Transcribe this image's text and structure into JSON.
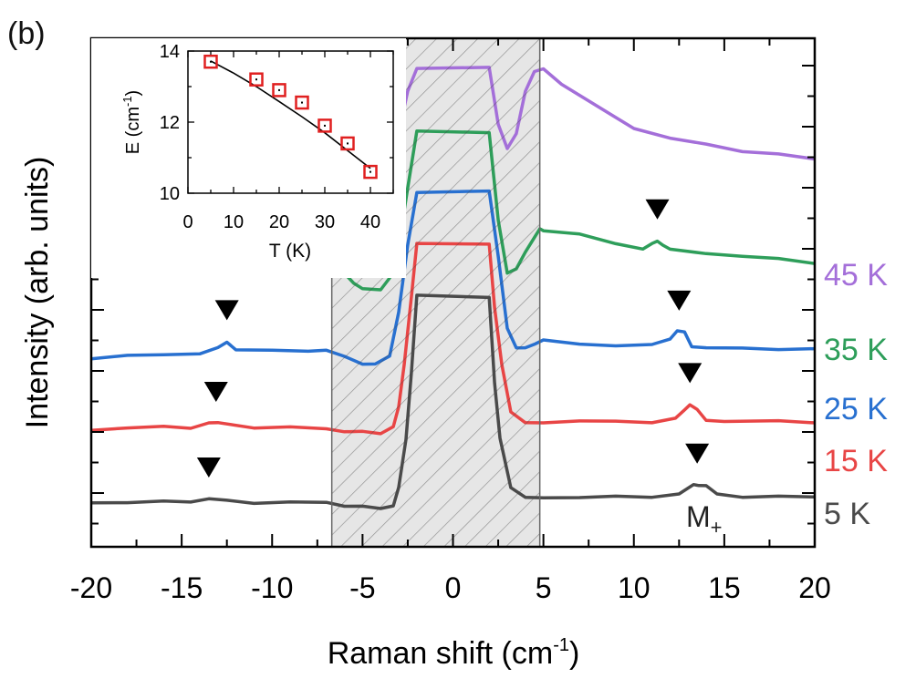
{
  "panel_label": "(b)",
  "chart_data": [
    {
      "type": "line",
      "title": "",
      "xlabel": "Raman shift (cm",
      "xlabel_sup": "-1",
      "xlabel_tail": ")",
      "ylabel": "Intensity (arb. units)",
      "xlim": [
        -20,
        20
      ],
      "ylim": [
        0,
        10
      ],
      "xticks": [
        -20,
        -15,
        -10,
        -5,
        0,
        5,
        10,
        15,
        20
      ],
      "xtick_labels": [
        "-20",
        "-15",
        "-10",
        "-5",
        "0",
        "5",
        "10",
        "15",
        "20"
      ],
      "shaded_region": {
        "from": -6.7,
        "to": 4.8
      },
      "mode_label": "M",
      "mode_label_sub": "+",
      "series": [
        {
          "name": "5 K",
          "color": "#4a4a4a",
          "x": [
            -20,
            -18,
            -16,
            -14.5,
            -13.5,
            -12.5,
            -11,
            -9,
            -7,
            -6,
            -5,
            -4,
            -3.3,
            -3,
            -2.6,
            -2.3,
            -2,
            2,
            2.3,
            2.6,
            3.2,
            4,
            5,
            7,
            9,
            11,
            12.5,
            13.3,
            13.6,
            14,
            14.6,
            16,
            18,
            20
          ],
          "y": [
            0.55,
            0.6,
            0.58,
            0.62,
            0.75,
            0.62,
            0.58,
            0.57,
            0.55,
            0.45,
            0.35,
            0.3,
            0.45,
            1.2,
            3.5,
            6.5,
            10,
            10,
            6,
            3.5,
            1.3,
            0.75,
            0.8,
            0.82,
            0.8,
            0.85,
            0.95,
            1.35,
            1.4,
            1.3,
            0.95,
            0.85,
            0.8,
            0.85
          ],
          "marker_x": 13.5
        },
        {
          "name": "15 K",
          "color": "#e84545",
          "x": [
            -20,
            -18,
            -16,
            -14.5,
            -13.5,
            -13,
            -11,
            -9,
            -7,
            -6,
            -5,
            -4,
            -3.3,
            -3,
            -2.7,
            -2.3,
            -2,
            2,
            2.3,
            2.7,
            3.2,
            4,
            5,
            7,
            9,
            11,
            12.3,
            12.8,
            13.1,
            13.5,
            14,
            15,
            18,
            20
          ],
          "y": [
            1.5,
            1.55,
            1.6,
            1.6,
            1.75,
            1.8,
            1.6,
            1.55,
            1.55,
            1.4,
            1.35,
            1.35,
            1.6,
            2.5,
            4.5,
            7.5,
            10,
            10,
            7,
            4.5,
            2.3,
            1.75,
            1.85,
            1.85,
            1.85,
            1.85,
            1.95,
            2.4,
            2.65,
            2.35,
            1.95,
            1.85,
            1.85,
            1.85
          ],
          "marker_x": 13.1
        },
        {
          "name": "25 K",
          "color": "#2870d0",
          "x": [
            -20,
            -18,
            -16,
            -14,
            -13,
            -12.5,
            -12,
            -10,
            -8,
            -7,
            -6,
            -5,
            -4.3,
            -3.5,
            -3,
            -2.5,
            -2,
            2,
            2.5,
            3,
            3.5,
            4,
            4.5,
            5,
            7,
            9,
            11,
            12,
            12.4,
            12.8,
            13.2,
            14,
            16,
            18,
            20
          ],
          "y": [
            2.4,
            2.45,
            2.55,
            2.6,
            2.8,
            3.15,
            2.75,
            2.7,
            2.75,
            2.7,
            2.45,
            2.15,
            2.05,
            2.5,
            4.5,
            7.5,
            10,
            10,
            7,
            3.8,
            2.8,
            2.85,
            3.05,
            3.15,
            3.05,
            2.95,
            2.95,
            3.3,
            3.6,
            3.55,
            2.95,
            2.8,
            2.85,
            2.8,
            2.75
          ],
          "marker_x": 12.5
        },
        {
          "name": "35 K",
          "color": "#2e9e5a",
          "x": [
            -20,
            -18,
            -16,
            -14,
            -12,
            -11.5,
            -11,
            -9,
            -7,
            -6.5,
            -6,
            -5.5,
            -5,
            -4,
            -3.5,
            -3,
            -2.5,
            -2,
            2,
            2.5,
            3,
            3.5,
            4,
            4.8,
            5,
            7,
            9,
            10.5,
            11,
            11.3,
            11.6,
            12,
            14,
            16,
            18,
            20
          ],
          "y": [
            3.5,
            3.45,
            3.55,
            3.8,
            4.15,
            4.25,
            4.2,
            4.35,
            4.3,
            4.1,
            3.6,
            3.1,
            2.8,
            2.85,
            3.3,
            4.8,
            7.5,
            10,
            10,
            6,
            3.5,
            3.8,
            4.5,
            5.55,
            5.55,
            5.3,
            4.9,
            4.7,
            4.85,
            5.05,
            4.85,
            4.6,
            4.5,
            4.3,
            4.2,
            4.05
          ],
          "marker_x": 11.3
        },
        {
          "name": "45 K",
          "color": "#a46fd9",
          "x": [
            -20,
            -18,
            -16,
            -14,
            -12,
            -10,
            -8,
            -6.5,
            -6,
            -5.5,
            -5,
            -4.5,
            -4,
            -3.5,
            -3,
            -2.5,
            -2,
            2,
            2.5,
            3,
            3.5,
            4,
            4.5,
            5,
            6,
            8,
            10,
            12,
            14,
            16,
            18,
            20
          ],
          "y": [
            4.95,
            5.0,
            5.1,
            5.2,
            5.3,
            5.4,
            5.5,
            5.5,
            4.8,
            3.9,
            3.7,
            3.75,
            4.1,
            5.0,
            7.0,
            9.0,
            10,
            10,
            7.5,
            6.3,
            7.0,
            9.0,
            9.8,
            10,
            9.3,
            8.2,
            7.3,
            6.8,
            6.5,
            6.25,
            6.05,
            5.85
          ],
          "marker_x": null
        }
      ]
    },
    {
      "type": "scatter",
      "title": "",
      "xlabel": "T (K)",
      "ylabel": "E (cm",
      "ylabel_sup": "-1",
      "ylabel_tail": ")",
      "xlim": [
        0,
        45
      ],
      "ylim": [
        10,
        14
      ],
      "xticks": [
        0,
        10,
        20,
        30,
        40
      ],
      "xtick_labels": [
        "0",
        "10",
        "20",
        "30",
        "40"
      ],
      "yticks": [
        10,
        12,
        14
      ],
      "ytick_labels": [
        "10",
        "12",
        "14"
      ],
      "points": {
        "x": [
          5,
          15,
          20,
          25,
          30,
          35,
          40
        ],
        "y": [
          13.7,
          13.2,
          12.9,
          12.55,
          11.9,
          11.4,
          10.6
        ]
      },
      "fit": {
        "x": [
          5,
          10,
          15,
          20,
          25,
          30,
          35,
          40
        ],
        "y": [
          13.72,
          13.38,
          13.0,
          12.58,
          12.15,
          11.7,
          11.2,
          10.7
        ]
      },
      "marker_color": "#e02020"
    }
  ]
}
